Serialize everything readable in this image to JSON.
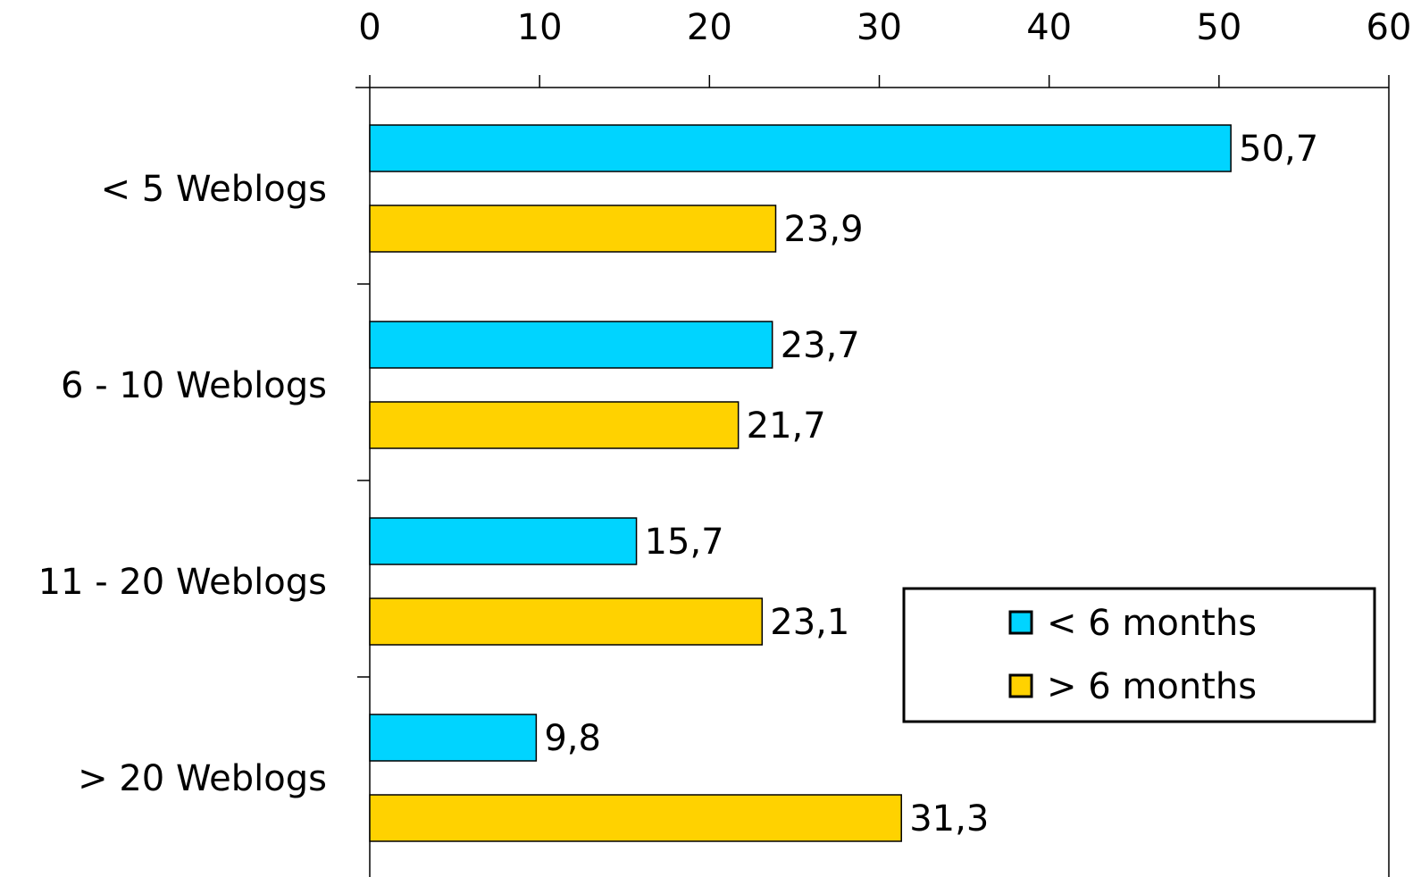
{
  "chart_data": {
    "type": "bar",
    "orientation": "horizontal",
    "title": "",
    "xlabel": "",
    "ylabel": "",
    "xlim": [
      0,
      60
    ],
    "x_ticks": [
      0,
      10,
      20,
      30,
      40,
      50,
      60
    ],
    "x_axis_position": "top",
    "grid": false,
    "legend_position": "bottom-right",
    "categories": [
      "< 5 Weblogs",
      "6 - 10 Weblogs",
      "11 - 20 Weblogs",
      "> 20 Weblogs"
    ],
    "series": [
      {
        "name": "< 6 months",
        "color": "#00D4FF",
        "values": [
          50.7,
          23.7,
          15.7,
          9.8
        ],
        "labels": [
          "50,7",
          "23,7",
          "15,7",
          "9,8"
        ]
      },
      {
        "name": "> 6 months",
        "color": "#FFD200",
        "values": [
          23.9,
          21.7,
          23.1,
          31.3
        ],
        "labels": [
          "23,9",
          "21,7",
          "23,1",
          "31,3"
        ]
      }
    ]
  }
}
